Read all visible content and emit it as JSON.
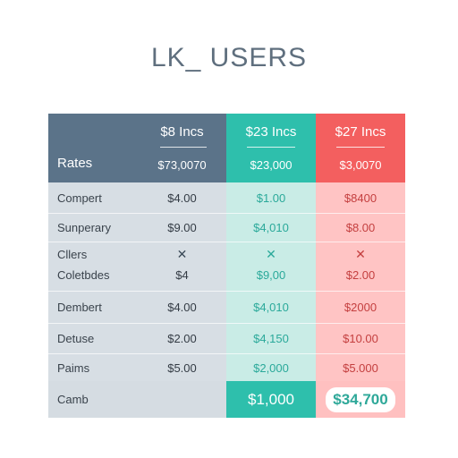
{
  "title": "LK_ USERS",
  "header": {
    "row_label": "Rates",
    "columns": [
      {
        "plan": "$8 Incs",
        "price": "$73,0070"
      },
      {
        "plan": "$23 Incs",
        "price": "$23,000"
      },
      {
        "plan": "$27 Incs",
        "price": "$3,0070"
      }
    ]
  },
  "rows": [
    {
      "label": "Compert",
      "values": [
        "$4.00",
        "$1.00",
        "$8400"
      ]
    },
    {
      "label": "Sunperary",
      "values": [
        "$9.00",
        "$4,010",
        "$8.00"
      ]
    },
    {
      "label": "Cllers",
      "values": [
        "✕",
        "✕",
        "✕"
      ]
    },
    {
      "label": "Coletbdes",
      "values": [
        "$4",
        "$9,00",
        "$2.00"
      ]
    },
    {
      "label": "Dembert",
      "values": [
        "$4.00",
        "$4,010",
        "$2000"
      ]
    },
    {
      "label": "Detuse",
      "values": [
        "$2.00",
        "$4,150",
        "$10.00"
      ]
    },
    {
      "label": "Paims",
      "values": [
        "$5.00",
        "$2,000",
        "$5.000"
      ]
    }
  ],
  "footer": {
    "label": "Camb",
    "values": [
      "",
      "$1,000",
      "$34,700"
    ]
  },
  "colors": {
    "slate": "#5b7389",
    "teal": "#2ebfac",
    "red": "#f35f5f"
  }
}
